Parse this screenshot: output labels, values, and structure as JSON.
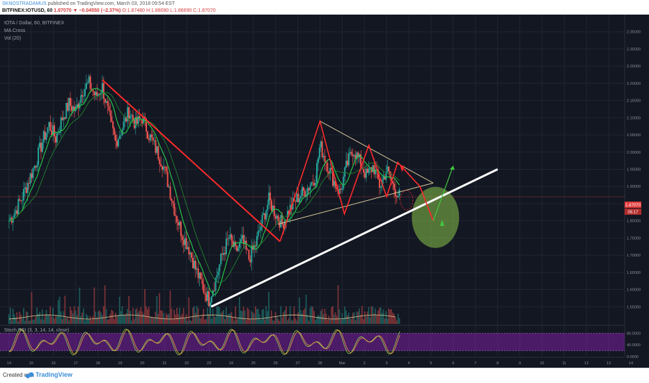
{
  "header": {
    "author": "SKNOSTRADAMUS",
    "published": "published on TradingView.com, March 03, 2018 09:54 EST",
    "symbol": "BITFINEX:IOTUSD, 60",
    "last": "1.87070",
    "change": "▼ −0.04550 (−2.37%)",
    "ohlc": "O:1.87480 H:1.88090 L:1.86690 C:1.87070"
  },
  "legend": {
    "title": "IOTA / Dollar, 60, BITFINEX",
    "ma": "MA Cross",
    "vol": "Vol (20)",
    "stoch": "Stoch RSI (3, 3, 14, 14, close)"
  },
  "price_tags": {
    "last": "1.87070",
    "timer": "05:17"
  },
  "colors": {
    "background": "#131722",
    "up": "#26a69a",
    "down": "#ef5350",
    "pattern": "#ff2a2a",
    "trendline": "#ffffff",
    "triangle": "#d9c89a",
    "target_zone": "#8bc34a",
    "arrow": "#43c943",
    "stoch_band": "#7b1fa2"
  },
  "chart_data": [
    {
      "type": "candlestick",
      "title": "IOTA / Dollar, 60, BITFINEX",
      "ylim": [
        1.5,
        2.4
      ],
      "y_ticks": [
        "2.35000",
        "2.30000",
        "2.25000",
        "2.20000",
        "2.15000",
        "2.10000",
        "2.05000",
        "2.00000",
        "1.95000",
        "1.90000",
        "1.85000",
        "1.80000",
        "1.75000",
        "1.70000",
        "1.65000",
        "1.60000",
        "1.55000"
      ],
      "x_ticks": [
        "14",
        "15",
        "16",
        "17",
        "18",
        "19",
        "20",
        "21",
        "22",
        "23",
        "24",
        "25",
        "26",
        "27",
        "28",
        "Mar",
        "2",
        "3",
        "4",
        "5",
        "6",
        "7",
        "8",
        "9",
        "10",
        "11",
        "12",
        "13",
        "14"
      ],
      "close_path": [
        [
          14.0,
          1.8
        ],
        [
          14.3,
          1.83
        ],
        [
          14.6,
          1.87
        ],
        [
          14.9,
          1.92
        ],
        [
          15.2,
          1.97
        ],
        [
          15.5,
          2.03
        ],
        [
          15.8,
          2.08
        ],
        [
          16.1,
          2.04
        ],
        [
          16.4,
          2.1
        ],
        [
          16.7,
          2.14
        ],
        [
          17.0,
          2.12
        ],
        [
          17.3,
          2.18
        ],
        [
          17.6,
          2.2
        ],
        [
          17.9,
          2.16
        ],
        [
          18.2,
          2.19
        ],
        [
          18.5,
          2.1
        ],
        [
          18.8,
          2.03
        ],
        [
          19.1,
          2.07
        ],
        [
          19.4,
          2.12
        ],
        [
          19.7,
          2.08
        ],
        [
          20.0,
          2.1
        ],
        [
          20.3,
          2.05
        ],
        [
          20.6,
          2.01
        ],
        [
          20.9,
          1.97
        ],
        [
          21.2,
          1.9
        ],
        [
          21.5,
          1.82
        ],
        [
          21.8,
          1.76
        ],
        [
          22.1,
          1.72
        ],
        [
          22.4,
          1.66
        ],
        [
          22.7,
          1.61
        ],
        [
          23.0,
          1.57
        ],
        [
          23.3,
          1.63
        ],
        [
          23.6,
          1.7
        ],
        [
          23.9,
          1.75
        ],
        [
          24.2,
          1.71
        ],
        [
          24.5,
          1.74
        ],
        [
          24.8,
          1.69
        ],
        [
          25.1,
          1.73
        ],
        [
          25.4,
          1.8
        ],
        [
          25.7,
          1.86
        ],
        [
          26.0,
          1.82
        ],
        [
          26.3,
          1.79
        ],
        [
          26.6,
          1.83
        ],
        [
          26.9,
          1.86
        ],
        [
          27.2,
          1.88
        ],
        [
          27.5,
          1.9
        ],
        [
          27.8,
          1.93
        ],
        [
          28.0,
          2.02
        ],
        [
          28.3,
          1.97
        ],
        [
          28.6,
          1.92
        ],
        [
          28.9,
          1.88
        ],
        [
          29.2,
          1.96
        ],
        [
          29.5,
          2.01
        ],
        [
          29.8,
          1.97
        ],
        [
          30.1,
          1.93
        ],
        [
          30.4,
          1.96
        ],
        [
          30.7,
          1.9
        ],
        [
          31.0,
          1.95
        ],
        [
          31.3,
          1.9
        ],
        [
          31.6,
          1.87
        ]
      ],
      "annotations": {
        "falling_line": [
          [
            18.2,
            2.21
          ],
          [
            26.2,
            1.74
          ]
        ],
        "zigzag": [
          [
            26.2,
            1.74
          ],
          [
            28.0,
            2.09
          ],
          [
            29.1,
            1.82
          ],
          [
            30.2,
            2.02
          ],
          [
            31.0,
            1.87
          ],
          [
            31.5,
            1.97
          ],
          [
            32.5,
            1.9
          ],
          [
            33.1,
            1.8
          ]
        ],
        "triangle_upper": [
          [
            28.0,
            2.09
          ],
          [
            33.1,
            1.91
          ]
        ],
        "triangle_lower": [
          [
            26.1,
            1.79
          ],
          [
            33.1,
            1.91
          ]
        ],
        "uptrend": [
          [
            23.1,
            1.55
          ],
          [
            36.0,
            1.95
          ]
        ],
        "target_zone_center": [
          33.2,
          1.81
        ],
        "arrow_up": [
          [
            33.1,
            1.8
          ],
          [
            34.0,
            1.96
          ]
        ],
        "small_circle_center": [
          31.9,
          1.86
        ],
        "last_price_line": 1.87
      }
    },
    {
      "type": "bar",
      "title": "Vol (20)"
    },
    {
      "type": "line",
      "title": "Stoch RSI (3, 3, 14, 14, close)",
      "ylim": [
        0,
        100
      ],
      "y_ticks": [
        "80.0000",
        "40.0000",
        "0.0000"
      ],
      "band": [
        20,
        80
      ]
    }
  ]
}
